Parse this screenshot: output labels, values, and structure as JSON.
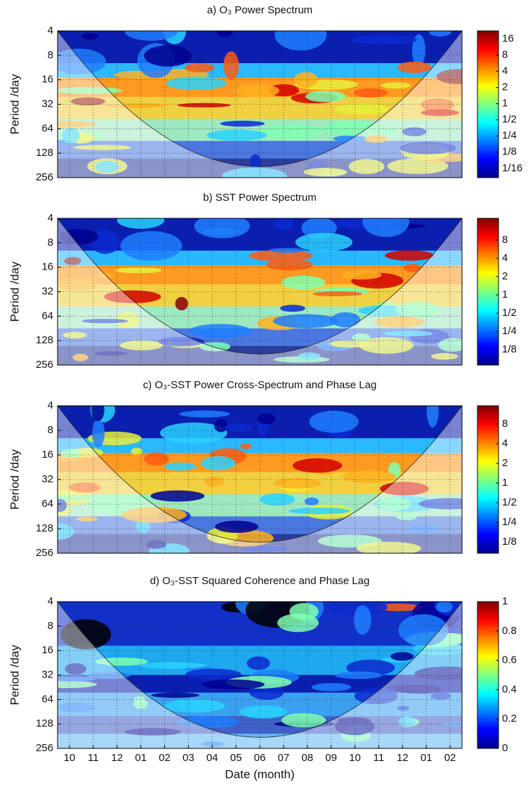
{
  "chart_data": [
    {
      "type": "wavelet",
      "title": "a) O₃ Power Spectrum",
      "ylabel": "Period /day",
      "ylim": [
        4,
        256
      ],
      "ylog": true,
      "yreverse": true,
      "yticks": [
        4,
        8,
        16,
        32,
        64,
        128,
        256
      ],
      "grid": true,
      "clim": [
        0.042,
        22.6
      ],
      "clog": true,
      "cticks": [
        16,
        8,
        4,
        2,
        1,
        {
          "value": 0.5,
          "label": "1/2"
        },
        {
          "value": 0.25,
          "label": "1/4"
        },
        {
          "value": 0.125,
          "label": "1/8"
        },
        {
          "value": 0.0625,
          "label": "1/16"
        }
      ]
    },
    {
      "type": "wavelet",
      "title": "b) SST Power Spectrum",
      "ylabel": "Period /day",
      "ylim": [
        4,
        256
      ],
      "ylog": true,
      "yreverse": true,
      "yticks": [
        4,
        8,
        16,
        32,
        64,
        128,
        256
      ],
      "grid": true,
      "clim": [
        0.07,
        18.2
      ],
      "clog": true,
      "cticks": [
        8,
        4,
        2,
        1,
        {
          "value": 0.5,
          "label": "1/2"
        },
        {
          "value": 0.25,
          "label": "1/4"
        },
        {
          "value": 0.125,
          "label": "1/8"
        }
      ]
    },
    {
      "type": "wavelet",
      "title": "c) O₃-SST Power Cross-Spectrum and Phase Lag",
      "ylabel": "Period /day",
      "ylim": [
        4,
        256
      ],
      "ylog": true,
      "yreverse": true,
      "yticks": [
        4,
        8,
        16,
        32,
        64,
        128,
        256
      ],
      "grid": true,
      "clim": [
        0.084,
        15.2
      ],
      "clog": true,
      "cticks": [
        8,
        4,
        2,
        1,
        {
          "value": 0.5,
          "label": "1/2"
        },
        {
          "value": 0.25,
          "label": "1/4"
        },
        {
          "value": 0.125,
          "label": "1/8"
        }
      ]
    },
    {
      "type": "wavelet",
      "title": "d) O₃-SST Squared Coherence and Phase Lag",
      "ylabel": "Period /day",
      "ylim": [
        4,
        256
      ],
      "ylog": true,
      "yreverse": true,
      "yticks": [
        4,
        8,
        16,
        32,
        64,
        128,
        256
      ],
      "grid": true,
      "clim": [
        0,
        1
      ],
      "clog": false,
      "cticks": [
        1,
        0.8,
        0.6,
        0.4,
        0.2,
        0
      ],
      "categories": [
        "10",
        "11",
        "12",
        "01",
        "02",
        "03",
        "04",
        "05",
        "06",
        "07",
        "08",
        "09",
        "10",
        "11",
        "12",
        "01",
        "02"
      ],
      "xlabel": "Date (month)"
    }
  ]
}
